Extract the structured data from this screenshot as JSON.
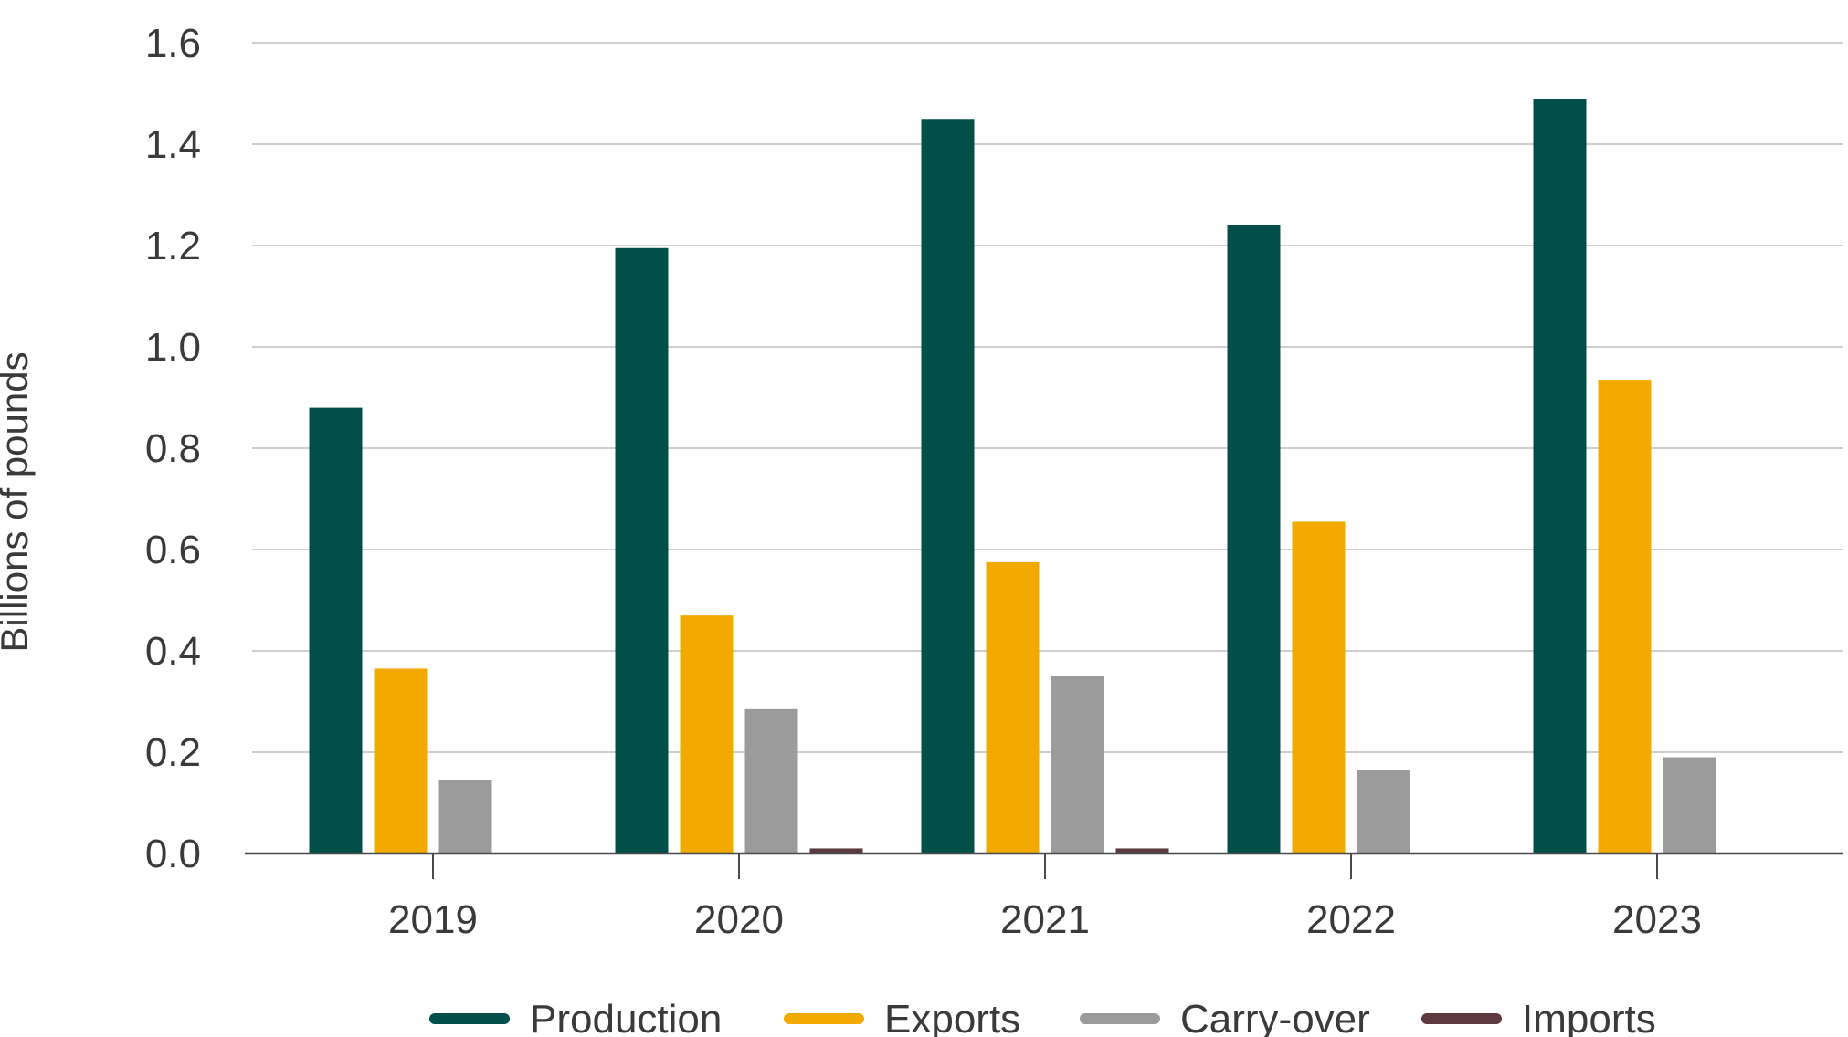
{
  "chart_data": {
    "type": "bar",
    "title": "",
    "xlabel": "",
    "ylabel": "Billions of pounds",
    "categories": [
      "2019",
      "2020",
      "2021",
      "2022",
      "2023"
    ],
    "ylim": [
      0,
      1.6
    ],
    "yticks": [
      "0.0",
      "0.2",
      "0.4",
      "0.6",
      "0.8",
      "1.0",
      "1.2",
      "1.4",
      "1.6"
    ],
    "grid": true,
    "legend_position": "bottom",
    "series": [
      {
        "name": "Production",
        "color": "#024f4a",
        "values": [
          0.88,
          1.195,
          1.45,
          1.24,
          1.49
        ]
      },
      {
        "name": "Exports",
        "color": "#f2a900",
        "values": [
          0.365,
          0.47,
          0.575,
          0.655,
          0.935
        ]
      },
      {
        "name": "Carry-over",
        "color": "#9b9b9b",
        "values": [
          0.145,
          0.285,
          0.35,
          0.165,
          0.19
        ]
      },
      {
        "name": "Imports",
        "color": "#5c3a3f",
        "values": [
          0,
          0.01,
          0.01,
          0,
          0
        ]
      }
    ],
    "colors": {
      "gridline": "#cfcfcf",
      "axis": "#4a4a4a",
      "text": "#3a3a3a"
    }
  }
}
